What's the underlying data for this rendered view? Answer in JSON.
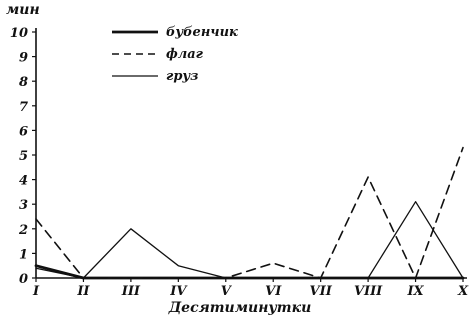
{
  "chart_data": {
    "type": "line",
    "ylabel": "мин",
    "xlabel": "Десятиминутки",
    "categories": [
      "I",
      "II",
      "III",
      "IV",
      "V",
      "VI",
      "VII",
      "VIII",
      "IX",
      "X"
    ],
    "yticks": [
      "0",
      "1",
      "2",
      "3",
      "4",
      "5",
      "6",
      "7",
      "8",
      "9",
      "10"
    ],
    "ylim": [
      0,
      10
    ],
    "grid": false,
    "legend": "top-left",
    "series": [
      {
        "name": "бубенчик",
        "style": "thick-solid",
        "color": "#111111",
        "values": [
          0.5,
          0.0,
          0.0,
          0.0,
          0.0,
          0.0,
          0.0,
          0.0,
          0.0,
          0.0
        ]
      },
      {
        "name": "флаг",
        "style": "dashed",
        "color": "#111111",
        "values": [
          2.4,
          0.0,
          0.0,
          0.0,
          0.0,
          0.6,
          0.0,
          4.1,
          0.0,
          5.3
        ]
      },
      {
        "name": "груз",
        "style": "thin-solid",
        "color": "#111111",
        "values": [
          0.4,
          0.0,
          2.0,
          0.5,
          0.0,
          0.0,
          0.0,
          0.0,
          3.1,
          0.0
        ]
      }
    ]
  }
}
